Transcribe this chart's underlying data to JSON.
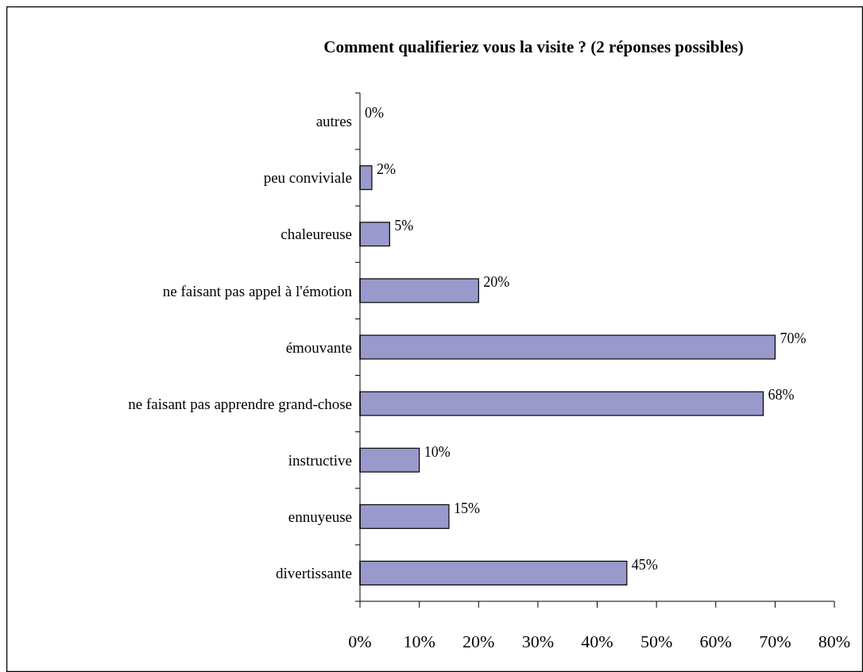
{
  "chart_data": {
    "type": "bar",
    "orientation": "horizontal",
    "title": "Comment qualifieriez vous la visite ? (2 réponses possibles)",
    "categories": [
      "autres",
      "peu conviviale",
      "chaleureuse",
      "ne faisant pas appel à l'émotion",
      "émouvante",
      "ne faisant pas apprendre grand-chose",
      "instructive",
      "ennuyeuse",
      "divertissante"
    ],
    "values": [
      0,
      2,
      5,
      20,
      70,
      68,
      10,
      15,
      45
    ],
    "value_labels": [
      "0%",
      "2%",
      "5%",
      "20%",
      "70%",
      "68%",
      "10%",
      "15%",
      "45%"
    ],
    "color": "#9999cc",
    "xlim": [
      0,
      80
    ],
    "xticks": [
      {
        "value": 0,
        "label": "0%"
      },
      {
        "value": 10,
        "label": "10%"
      },
      {
        "value": 20,
        "label": "20%"
      },
      {
        "value": 30,
        "label": "30%"
      },
      {
        "value": 40,
        "label": "40%"
      },
      {
        "value": 50,
        "label": "50%"
      },
      {
        "value": 60,
        "label": "60%"
      },
      {
        "value": 70,
        "label": "70%"
      },
      {
        "value": 80,
        "label": "80%"
      }
    ],
    "grid": false
  }
}
